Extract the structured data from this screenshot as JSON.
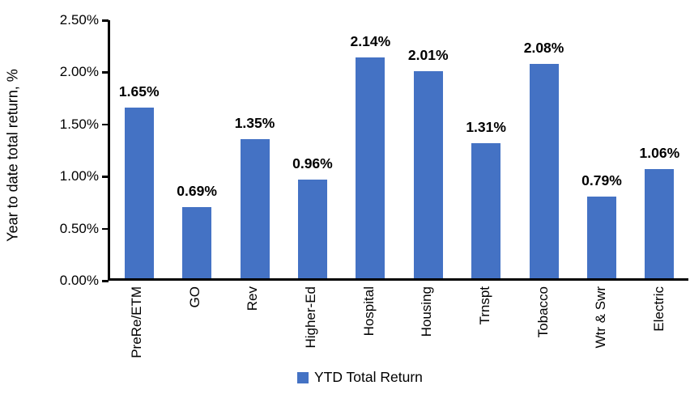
{
  "chart_data": {
    "type": "bar",
    "title": "",
    "ylabel": "Year to date total return, %",
    "xlabel": "",
    "categories": [
      "PreRe/ETM",
      "GO",
      "Rev",
      "Higher-Ed",
      "Hospital",
      "Housing",
      "Trnspt",
      "Tobacco",
      "Wtr & Swr",
      "Electric"
    ],
    "values": [
      1.65,
      0.69,
      1.35,
      0.96,
      2.14,
      2.01,
      1.31,
      2.08,
      0.79,
      1.06
    ],
    "value_labels": [
      "1.65%",
      "0.69%",
      "1.35%",
      "0.96%",
      "2.14%",
      "2.01%",
      "1.31%",
      "2.08%",
      "0.79%",
      "1.06%"
    ],
    "series": [
      {
        "name": "YTD Total Return"
      }
    ],
    "y_ticks": [
      "2.50%",
      "2.00%",
      "1.50%",
      "1.00%",
      "0.50%",
      "0.00%"
    ],
    "ylim": [
      0,
      2.5
    ],
    "grid": "off",
    "legend_position": "bottom-center",
    "bar_color": "#4472C4",
    "axis_color": "#000000",
    "label_color": "#000000"
  },
  "legend": {
    "label": "YTD Total Return"
  }
}
